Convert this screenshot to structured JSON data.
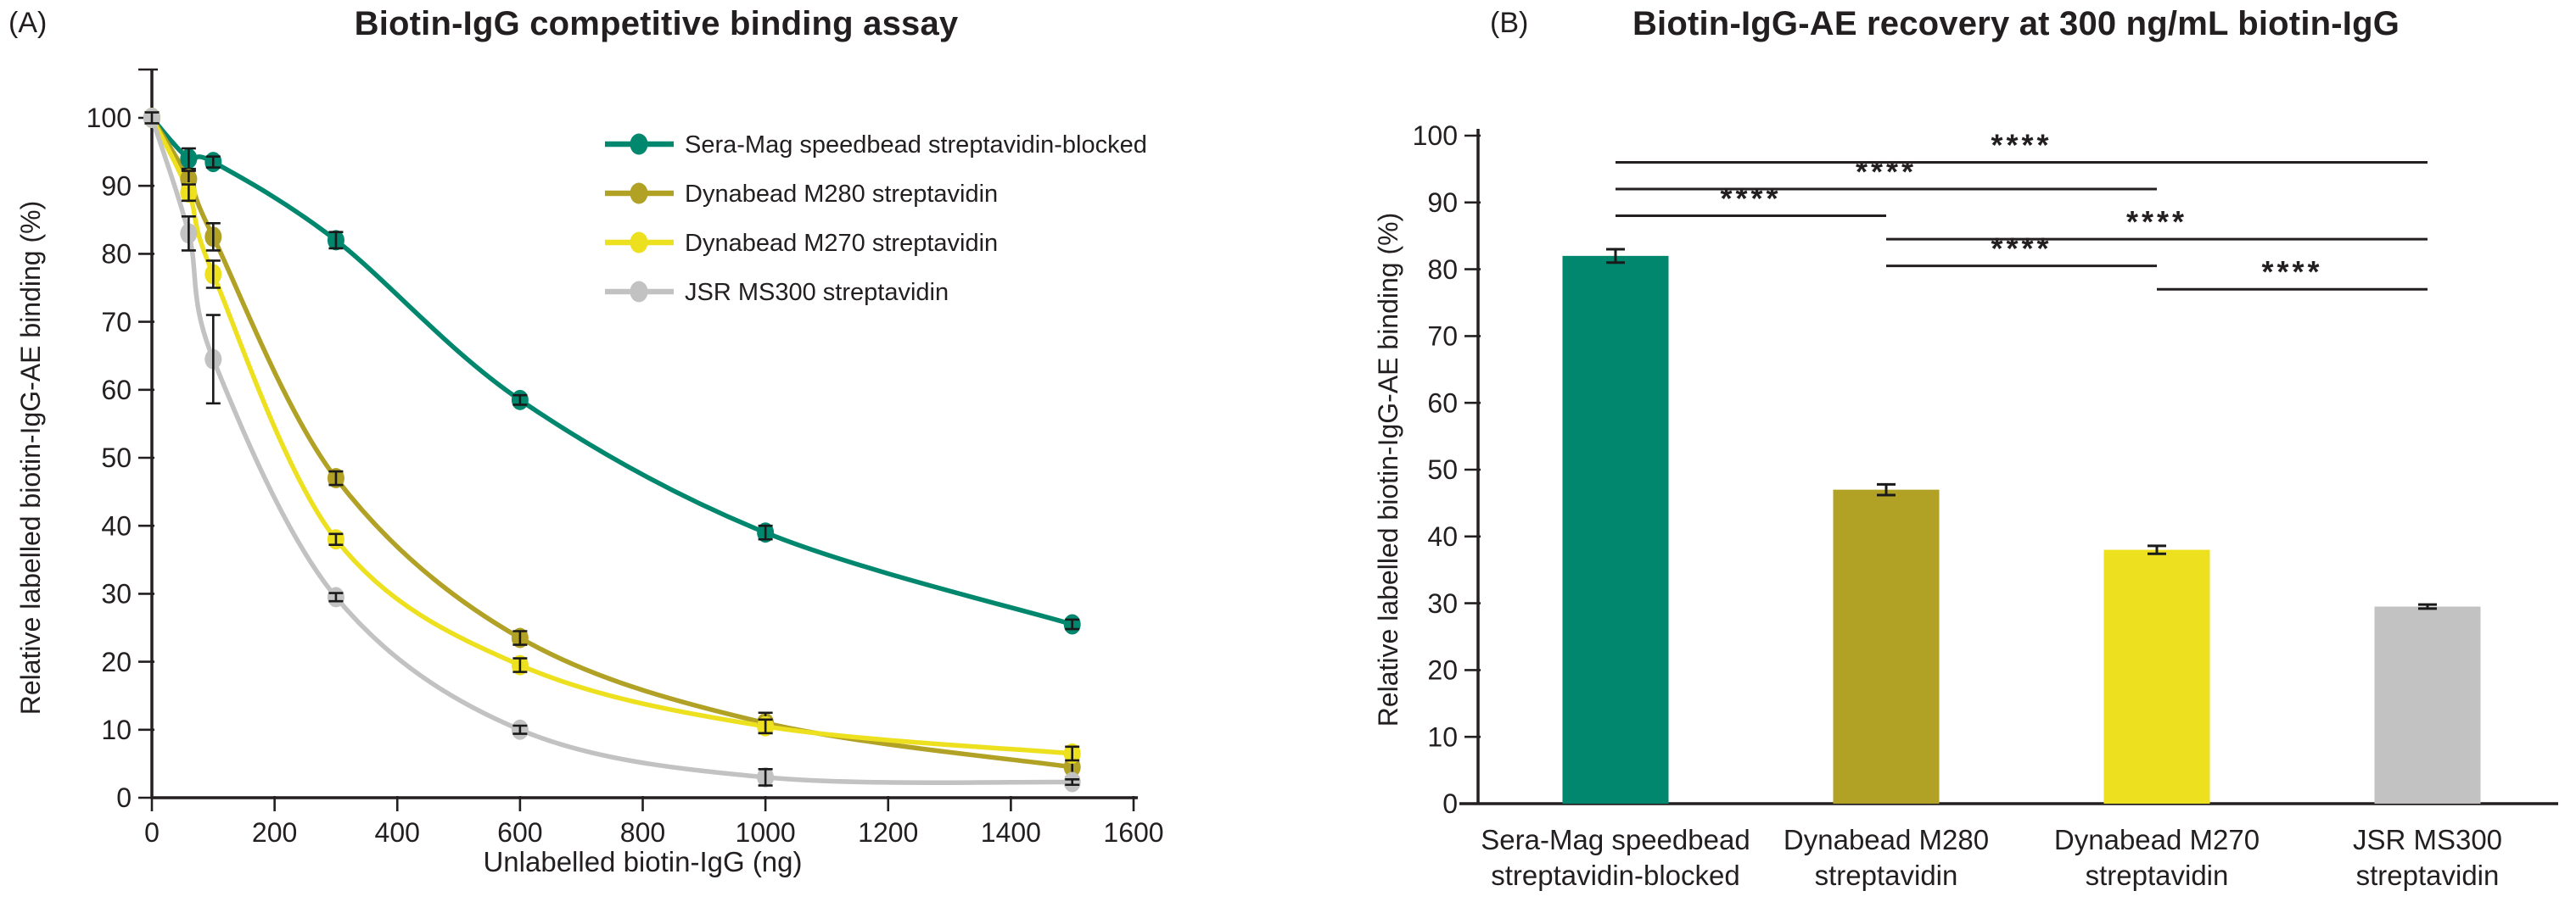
{
  "colors": {
    "teal": "#00876E",
    "olive": "#B1A125",
    "yellow": "#EDE01F",
    "gray": "#C2C2C2",
    "ink": "#231F20",
    "error_bar": "#1A1A1A",
    "background": "#FFFFFF"
  },
  "panel_a": {
    "letter": "(A)",
    "title": "Biotin-IgG competitive binding assay",
    "xlabel": "Unlabelled biotin-IgG (ng)",
    "ylabel": "Relative labelled biotin-IgG-AE binding (%)"
  },
  "panel_b": {
    "letter": "(B)",
    "title": "Biotin-IgG-AE recovery at 300 ng/mL biotin-IgG",
    "ylabel": "Relative labelled biotin-IgG-AE binding (%)"
  },
  "chart_data": [
    {
      "id": "A",
      "type": "line",
      "title": "Biotin-IgG competitive binding assay",
      "xlabel": "Unlabelled biotin-IgG (ng)",
      "ylabel": "Relative labelled biotin-IgG-AE binding (%)",
      "xlim": [
        0,
        1600
      ],
      "xticks": [
        0,
        200,
        400,
        600,
        800,
        1000,
        1200,
        1400,
        1600
      ],
      "ylim": [
        0,
        100
      ],
      "yticks": [
        0,
        10,
        20,
        30,
        40,
        50,
        60,
        70,
        80,
        90,
        100
      ],
      "grid": false,
      "legend_position": "inside upper right",
      "x": [
        0,
        60,
        100,
        300,
        600,
        1000,
        1500
      ],
      "series": [
        {
          "name": "Sera-Mag speedbead streptavidin-blocked",
          "color_key": "teal",
          "values": [
            100,
            94,
            93.5,
            82,
            58.5,
            39,
            25.5
          ],
          "errors": [
            0.8,
            1.5,
            0.8,
            1.2,
            0.7,
            1.0,
            0.7
          ]
        },
        {
          "name": "Dynabead M280 streptavidin",
          "color_key": "olive",
          "values": [
            100,
            91,
            82.5,
            47,
            23.5,
            11,
            4.5
          ],
          "errors": [
            0.8,
            1.2,
            2.0,
            1.0,
            1.0,
            1.5,
            1.5
          ]
        },
        {
          "name": "Dynabead M270 streptavidin",
          "color_key": "yellow",
          "values": [
            100,
            89,
            77,
            38,
            19.5,
            10.5,
            6.5
          ],
          "errors": [
            0.8,
            1.2,
            2.0,
            0.8,
            1.0,
            1.0,
            1.0
          ]
        },
        {
          "name": "JSR MS300 streptavidin",
          "color_key": "gray",
          "values": [
            100,
            83,
            64.5,
            29.5,
            10,
            3,
            2.3
          ],
          "errors": [
            0.8,
            2.5,
            6.5,
            0.6,
            0.6,
            1.2,
            0.4
          ]
        }
      ]
    },
    {
      "id": "B",
      "type": "bar",
      "title": "Biotin-IgG-AE recovery at 300 ng/mL biotin-IgG",
      "ylabel": "Relative labelled biotin-IgG-AE binding (%)",
      "ylim": [
        0,
        100
      ],
      "yticks": [
        0,
        10,
        20,
        30,
        40,
        50,
        60,
        70,
        80,
        90,
        100
      ],
      "grid": false,
      "categories": [
        [
          "Sera-Mag speedbead",
          "streptavidin-blocked"
        ],
        [
          "Dynabead M280",
          "streptavidin"
        ],
        [
          "Dynabead M270",
          "streptavidin"
        ],
        [
          "JSR MS300",
          "streptavidin"
        ]
      ],
      "bar_color_keys": [
        "teal",
        "olive",
        "yellow",
        "gray"
      ],
      "values": [
        82,
        47,
        38,
        29.5
      ],
      "errors": [
        1.0,
        0.8,
        0.6,
        0.3
      ],
      "significance": [
        {
          "pair": [
            0,
            3
          ],
          "level_pct": 96.0,
          "label": "****"
        },
        {
          "pair": [
            0,
            2
          ],
          "level_pct": 92.0,
          "label": "****"
        },
        {
          "pair": [
            0,
            1
          ],
          "level_pct": 88.0,
          "label": "****"
        },
        {
          "pair": [
            1,
            3
          ],
          "level_pct": 84.5,
          "label": "****"
        },
        {
          "pair": [
            1,
            2
          ],
          "level_pct": 80.5,
          "label": "****"
        },
        {
          "pair": [
            2,
            3
          ],
          "level_pct": 77.0,
          "label": "****"
        }
      ]
    }
  ]
}
